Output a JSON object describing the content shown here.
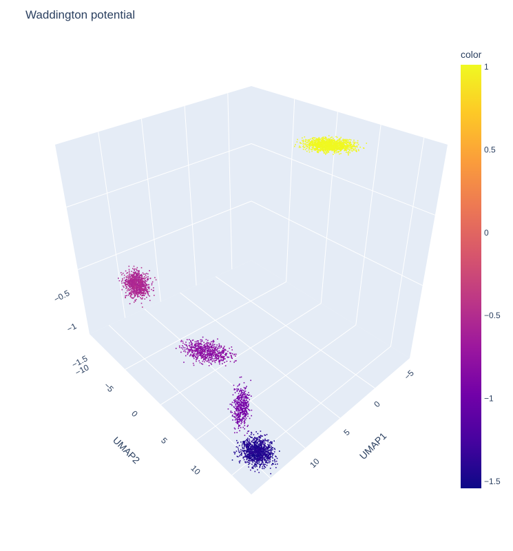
{
  "chart_data": {
    "type": "scatter3d",
    "title": "Waddington potential",
    "x_axis": {
      "title": "UMAP1",
      "ticks": [
        "−5",
        "0",
        "5",
        "10"
      ]
    },
    "y_axis": {
      "title": "UMAP2",
      "ticks": [
        "−10",
        "−5",
        "0",
        "5",
        "10"
      ]
    },
    "z_axis": {
      "title": "",
      "ticks": [
        "−0.5",
        "−1",
        "−1.5"
      ]
    },
    "colorbar": {
      "title": "color",
      "range": [
        -1.55,
        1
      ],
      "ticks": [
        "1",
        "0.5",
        "0",
        "−0.5",
        "−1",
        "−1.5"
      ],
      "colorscale": [
        "#0d0887",
        "#46039f",
        "#7201a8",
        "#9c179e",
        "#bd3786",
        "#d8576b",
        "#ed7953",
        "#fb9f3a",
        "#fdca26",
        "#f0f921"
      ]
    },
    "clusters": [
      {
        "umap1": -10,
        "umap2": -8,
        "color_value": 1.0
      },
      {
        "umap1": 0,
        "umap2": -8,
        "color_value": -0.55
      },
      {
        "umap1": 4,
        "umap2": 0,
        "color_value": -0.8
      },
      {
        "umap1": 6,
        "umap2": 3,
        "color_value": -0.95
      },
      {
        "umap1": 9,
        "umap2": 8,
        "color_value": -1.45
      }
    ],
    "grid": true,
    "legend_placement": "right"
  }
}
